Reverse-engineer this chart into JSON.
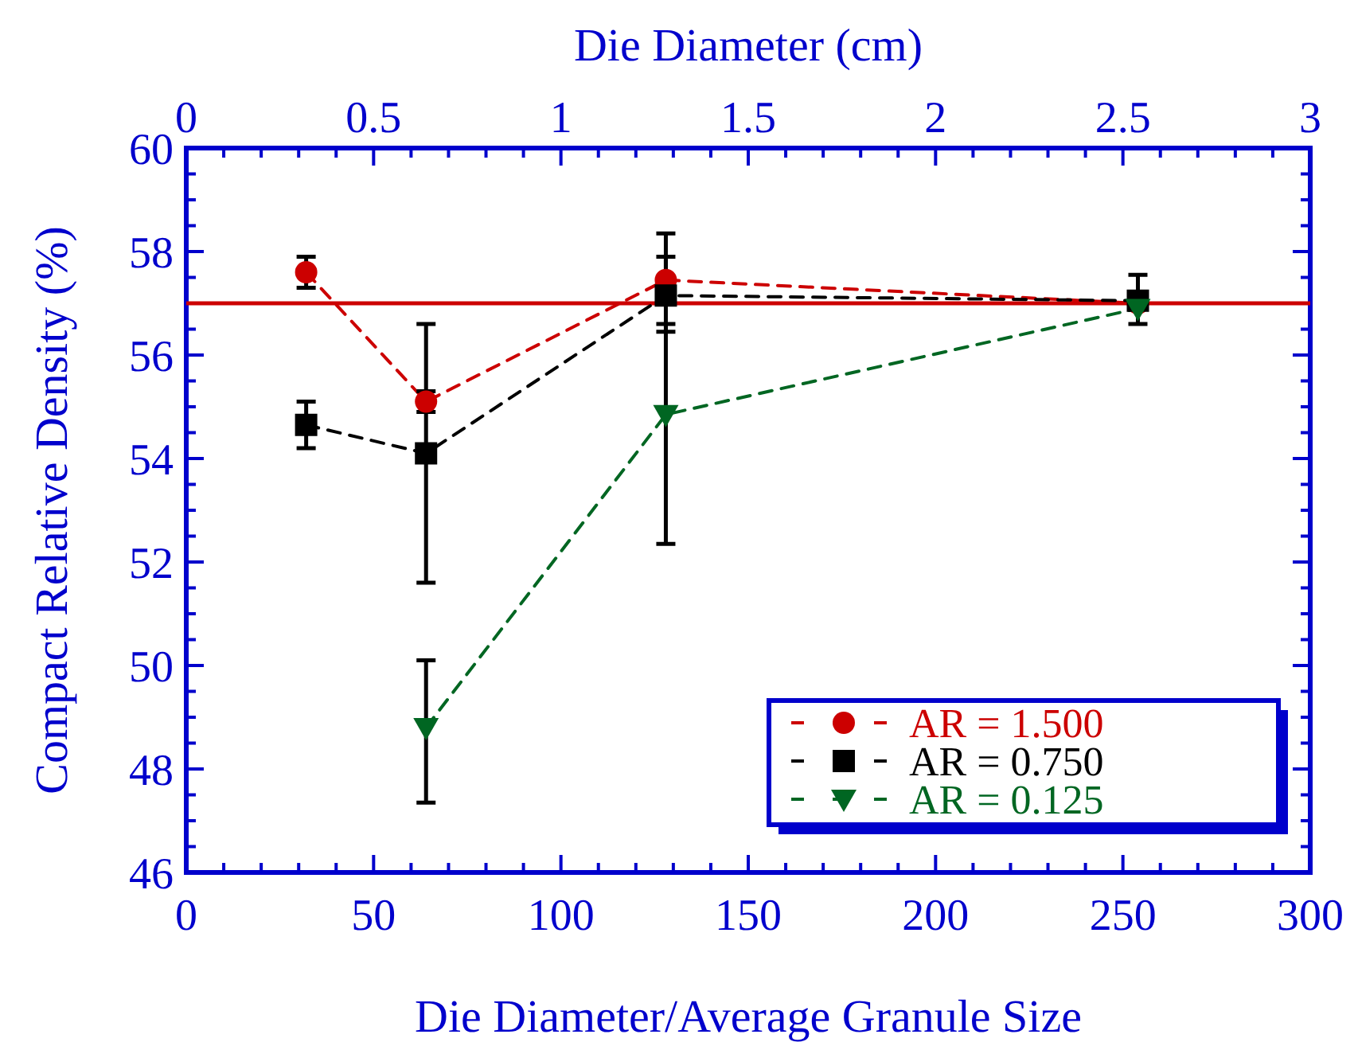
{
  "chart_data": {
    "type": "line",
    "xlabel": "Die Diameter/Average Granule Size",
    "ylabel": "Compact Relative Density (%)",
    "x2label": "Die Diameter (cm)",
    "xlim": [
      0,
      300
    ],
    "ylim": [
      46,
      60
    ],
    "x2lim": [
      0,
      3
    ],
    "xticks": [
      0,
      {
        "value": 10,
        "label": null
      },
      {
        "value": 20,
        "label": null
      },
      {
        "value": 30,
        "label": null
      },
      {
        "value": 40,
        "label": null
      },
      50,
      {
        "value": 60,
        "label": null
      },
      {
        "value": 70,
        "label": null
      },
      {
        "value": 80,
        "label": null
      },
      {
        "value": 90,
        "label": null
      },
      100,
      {
        "value": 110,
        "label": null
      },
      {
        "value": 120,
        "label": null
      },
      {
        "value": 130,
        "label": null
      },
      {
        "value": 140,
        "label": null
      },
      150,
      {
        "value": 160,
        "label": null
      },
      {
        "value": 170,
        "label": null
      },
      {
        "value": 180,
        "label": null
      },
      {
        "value": 190,
        "label": null
      },
      200,
      {
        "value": 210,
        "label": null
      },
      {
        "value": 220,
        "label": null
      },
      {
        "value": 230,
        "label": null
      },
      {
        "value": 240,
        "label": null
      },
      250,
      {
        "value": 260,
        "label": null
      },
      {
        "value": 270,
        "label": null
      },
      {
        "value": 280,
        "label": null
      },
      {
        "value": 290,
        "label": null
      },
      300
    ],
    "yticks": [
      46,
      {
        "value": 46.5,
        "label": null
      },
      {
        "value": 47,
        "label": null
      },
      {
        "value": 47.5,
        "label": null
      },
      48,
      {
        "value": 48.5,
        "label": null
      },
      {
        "value": 49,
        "label": null
      },
      {
        "value": 49.5,
        "label": null
      },
      50,
      {
        "value": 50.5,
        "label": null
      },
      {
        "value": 51,
        "label": null
      },
      {
        "value": 51.5,
        "label": null
      },
      52,
      {
        "value": 52.5,
        "label": null
      },
      {
        "value": 53,
        "label": null
      },
      {
        "value": 53.5,
        "label": null
      },
      54,
      {
        "value": 54.5,
        "label": null
      },
      {
        "value": 55,
        "label": null
      },
      {
        "value": 55.5,
        "label": null
      },
      56,
      {
        "value": 56.5,
        "label": null
      },
      {
        "value": 57,
        "label": null
      },
      {
        "value": 57.5,
        "label": null
      },
      58,
      {
        "value": 58.5,
        "label": null
      },
      {
        "value": 59,
        "label": null
      },
      {
        "value": 59.5,
        "label": null
      },
      60
    ],
    "x2ticks": [
      0,
      {
        "value": 0.1,
        "label": null
      },
      {
        "value": 0.2,
        "label": null
      },
      {
        "value": 0.3,
        "label": null
      },
      {
        "value": 0.4,
        "label": null
      },
      0.5,
      {
        "value": 0.6,
        "label": null
      },
      {
        "value": 0.7,
        "label": null
      },
      {
        "value": 0.8,
        "label": null
      },
      {
        "value": 0.9,
        "label": null
      },
      1,
      {
        "value": 1.1,
        "label": null
      },
      {
        "value": 1.2,
        "label": null
      },
      {
        "value": 1.3,
        "label": null
      },
      {
        "value": 1.4,
        "label": null
      },
      1.5,
      {
        "value": 1.6,
        "label": null
      },
      {
        "value": 1.7,
        "label": null
      },
      {
        "value": 1.8,
        "label": null
      },
      {
        "value": 1.9,
        "label": null
      },
      2,
      {
        "value": 2.1,
        "label": null
      },
      {
        "value": 2.2,
        "label": null
      },
      {
        "value": 2.3,
        "label": null
      },
      {
        "value": 2.4,
        "label": null
      },
      2.5,
      {
        "value": 2.6,
        "label": null
      },
      {
        "value": 2.7,
        "label": null
      },
      {
        "value": 2.8,
        "label": null
      },
      {
        "value": 2.9,
        "label": null
      },
      3
    ],
    "grid": false,
    "legend": "bottom right",
    "line_style": "dashed",
    "ref_lines": [
      {
        "axis": "y",
        "value": 57.0,
        "color": "#cc0000",
        "line_style": "solid"
      }
    ],
    "series": [
      {
        "name": "AR = 1.500",
        "color": "#cc0000",
        "marker": "circle",
        "x": [
          32,
          64,
          128,
          254
        ],
        "values": [
          57.6,
          55.1,
          57.45,
          57.0
        ],
        "errors": [
          [
            57.3,
            57.9
          ],
          [
            54.9,
            55.3
          ],
          [
            57.45,
            57.9
          ],
          null
        ]
      },
      {
        "name": "AR = 0.750",
        "color": "#000000",
        "marker": "square",
        "x": [
          32,
          64,
          128,
          254
        ],
        "values": [
          54.65,
          54.1,
          57.15,
          57.05
        ],
        "errors": [
          [
            54.2,
            55.1
          ],
          [
            51.6,
            56.6
          ],
          [
            56.45,
            58.35
          ],
          [
            56.6,
            57.55
          ]
        ]
      },
      {
        "name": "AR = 0.125",
        "color": "#006622",
        "marker": "triangle",
        "x": [
          64,
          128,
          254
        ],
        "values": [
          48.8,
          54.85,
          56.9
        ],
        "errors": [
          [
            47.35,
            50.1
          ],
          [
            52.35,
            56.6
          ],
          null
        ]
      }
    ]
  }
}
